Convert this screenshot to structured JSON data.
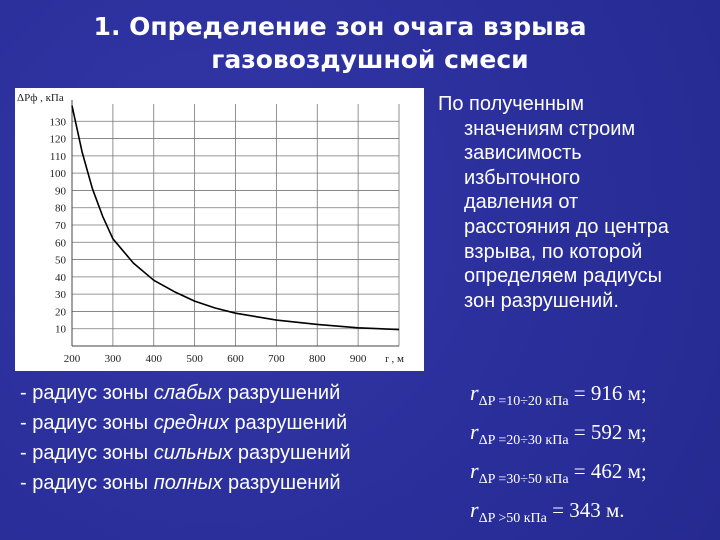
{
  "title": {
    "line1": "1. Определение зон очага взрыва",
    "line2": "газовоздушной смеси"
  },
  "description": [
    "По полученным",
    "значениям строим",
    "зависимость",
    "избыточного",
    "давления от",
    "расстояния до центра",
    "взрыва, по которой",
    "определяем радиусы",
    "зон разрушений."
  ],
  "radii": [
    {
      "prefix": "- радиус зоны ",
      "emph": "слабых",
      "suffix": " разрушений",
      "r": "r",
      "sub": "ΔP =10÷20 кПа",
      "value": " = 916 м;"
    },
    {
      "prefix": "- радиус зоны ",
      "emph": "средних",
      "suffix": " разрушений",
      "r": "r",
      "sub": "ΔP =20÷30 кПа",
      "value": " = 592 м;"
    },
    {
      "prefix": "- радиус зоны ",
      "emph": "сильных",
      "suffix": " разрушений",
      "r": "r",
      "sub": "ΔP =30÷50 кПа",
      "value": " = 462 м;"
    },
    {
      "prefix": "- радиус зоны ",
      "emph": "полных",
      "suffix": " разрушений",
      "r": "r",
      "sub": "ΔP >50 кПа",
      "value": " = 343 м."
    }
  ],
  "chart_data": {
    "type": "line",
    "ylabel": "ΔPф , кПа",
    "xlabel": "r , м",
    "xlim": [
      200,
      1000
    ],
    "ylim": [
      0,
      140
    ],
    "xticks": [
      "200",
      "300",
      "400",
      "500",
      "600",
      "700",
      "800",
      "900"
    ],
    "yticks": [
      "10",
      "20",
      "30",
      "40",
      "50",
      "60",
      "70",
      "80",
      "90",
      "100",
      "110",
      "120",
      "130"
    ],
    "grid": true,
    "x": [
      200,
      225,
      250,
      275,
      300,
      350,
      400,
      450,
      500,
      550,
      600,
      700,
      800,
      900,
      1000
    ],
    "y": [
      139,
      112,
      91,
      75,
      62,
      48,
      38,
      31.5,
      26,
      22,
      19,
      15,
      12.5,
      10.5,
      9.5
    ]
  }
}
